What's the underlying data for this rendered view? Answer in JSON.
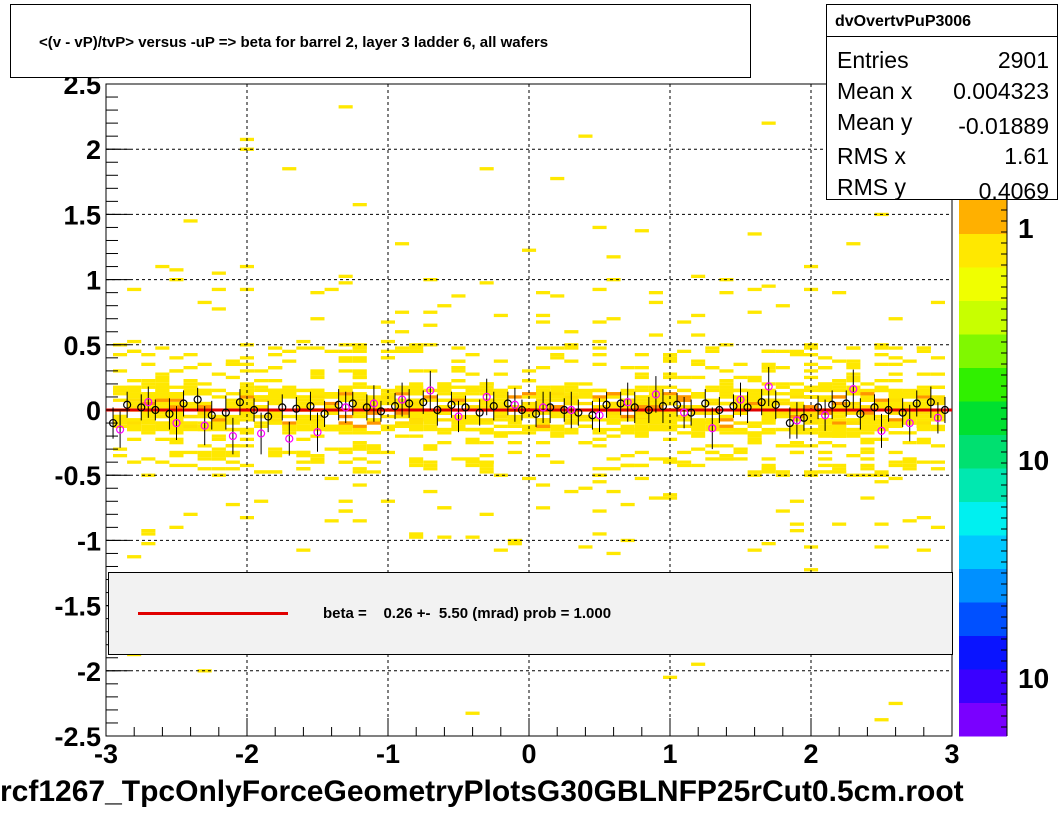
{
  "title": "<(v - vP)/tvP> versus  -uP => beta for barrel 2, layer 3 ladder 6, all wafers",
  "stats": {
    "name": "dvOvertvPuP3006",
    "rows": [
      {
        "key": "Entries",
        "value": "2901"
      },
      {
        "key": "Mean x",
        "value": "0.004323"
      },
      {
        "key": "Mean y",
        "value": "-0.01889"
      },
      {
        "key": "RMS x",
        "value": "1.61"
      },
      {
        "key": "RMS y",
        "value": "0.4069"
      }
    ]
  },
  "legend": {
    "text": "beta =    0.26 +-  5.50 (mrad) prob = 1.000",
    "line_color": "#e00000"
  },
  "footer": "rcf1267_TpcOnlyForceGeometryPlotsG30GBLNFP25rCut0.5cm.root",
  "palette": {
    "labels": [
      "1",
      "10",
      "10"
    ],
    "colors": [
      "#7a00ff",
      "#3a00ff",
      "#0a14ff",
      "#0050ff",
      "#0090ff",
      "#00c8ff",
      "#00f0f0",
      "#00e8b0",
      "#00e070",
      "#00e030",
      "#30f000",
      "#80f800",
      "#c8ff00",
      "#f0ff00",
      "#ffe800",
      "#ffb000"
    ]
  },
  "chart_data": {
    "type": "heatmap",
    "title": "<(v - vP)/tvP> versus  -uP => beta for barrel 2, layer 3 ladder 6, all wafers",
    "xlabel": "",
    "ylabel": "",
    "xlim": [
      -3,
      3
    ],
    "ylim": [
      -2.5,
      2.5
    ],
    "x_ticks": [
      "-3",
      "-2",
      "-1",
      "0",
      "1",
      "2",
      "3"
    ],
    "y_ticks": [
      "-2.5",
      "-2",
      "-1.5",
      "-1",
      "-0.5",
      "0",
      "0.5",
      "1",
      "1.5",
      "2",
      "2.5"
    ],
    "grid": true,
    "legend_position": "bottom",
    "series": [
      {
        "name": "profile",
        "marker": "open-circle",
        "color": "#000000",
        "x": [
          -2.95,
          -2.85,
          -2.75,
          -2.65,
          -2.55,
          -2.45,
          -2.35,
          -2.25,
          -2.15,
          -2.05,
          -1.95,
          -1.85,
          -1.75,
          -1.65,
          -1.55,
          -1.45,
          -1.35,
          -1.25,
          -1.15,
          -1.05,
          -0.95,
          -0.85,
          -0.75,
          -0.65,
          -0.55,
          -0.45,
          -0.35,
          -0.25,
          -0.15,
          -0.05,
          0.05,
          0.15,
          0.25,
          0.35,
          0.45,
          0.55,
          0.65,
          0.75,
          0.85,
          0.95,
          1.05,
          1.15,
          1.25,
          1.35,
          1.45,
          1.55,
          1.65,
          1.75,
          1.85,
          1.95,
          2.05,
          2.15,
          2.25,
          2.35,
          2.45,
          2.55,
          2.65,
          2.75,
          2.85,
          2.95
        ],
        "y": [
          -0.1,
          0.04,
          0.02,
          0.0,
          -0.03,
          0.05,
          0.08,
          -0.04,
          -0.02,
          0.06,
          0.0,
          -0.05,
          0.02,
          0.01,
          0.03,
          -0.03,
          0.04,
          0.05,
          0.02,
          -0.01,
          0.03,
          0.05,
          0.06,
          0.0,
          0.04,
          0.02,
          -0.02,
          0.03,
          0.05,
          0.0,
          -0.03,
          0.02,
          0.0,
          -0.02,
          -0.04,
          0.04,
          0.05,
          0.02,
          0.0,
          0.03,
          0.04,
          -0.02,
          0.05,
          0.0,
          0.03,
          0.02,
          0.06,
          0.04,
          -0.1,
          -0.06,
          0.02,
          0.04,
          0.05,
          -0.03,
          0.02,
          0.0,
          -0.02,
          0.05,
          0.06,
          0.0
        ],
        "yerr": [
          0.12,
          0.1,
          0.1,
          0.08,
          0.12,
          0.1,
          0.09,
          0.11,
          0.13,
          0.1,
          0.09,
          0.12,
          0.1,
          0.09,
          0.11,
          0.1,
          0.12,
          0.09,
          0.1,
          0.08,
          0.1,
          0.11,
          0.09,
          0.12,
          0.1,
          0.09,
          0.1,
          0.11,
          0.09,
          0.08,
          0.1,
          0.12,
          0.09,
          0.1,
          0.11,
          0.1,
          0.09,
          0.12,
          0.1,
          0.13,
          0.09,
          0.1,
          0.11,
          0.1,
          0.09,
          0.12,
          0.1,
          0.11,
          0.12,
          0.1,
          0.09,
          0.11,
          0.1,
          0.12,
          0.1,
          0.09,
          0.11,
          0.1,
          0.12,
          0.1
        ]
      },
      {
        "name": "profile-alt",
        "marker": "open-circle",
        "color": "#ff00ff",
        "x": [
          -2.9,
          -2.7,
          -2.5,
          -2.3,
          -2.1,
          -1.9,
          -1.7,
          -1.5,
          -1.3,
          -1.1,
          -0.9,
          -0.7,
          -0.5,
          -0.3,
          -0.1,
          0.1,
          0.3,
          0.5,
          0.7,
          0.9,
          1.1,
          1.3,
          1.5,
          1.7,
          1.9,
          2.1,
          2.3,
          2.5,
          2.7,
          2.9
        ],
        "y": [
          -0.15,
          0.06,
          -0.1,
          -0.12,
          -0.2,
          -0.18,
          -0.22,
          -0.17,
          0.02,
          0.05,
          0.08,
          0.15,
          -0.05,
          0.1,
          0.04,
          0.02,
          0.0,
          -0.04,
          0.06,
          0.12,
          -0.02,
          -0.14,
          0.08,
          0.18,
          -0.08,
          -0.04,
          0.16,
          -0.16,
          -0.1,
          -0.06
        ],
        "yerr": [
          0.14,
          0.12,
          0.13,
          0.15,
          0.14,
          0.16,
          0.13,
          0.15,
          0.12,
          0.14,
          0.13,
          0.15,
          0.12,
          0.14,
          0.13,
          0.12,
          0.14,
          0.13,
          0.15,
          0.14,
          0.12,
          0.16,
          0.13,
          0.15,
          0.14,
          0.12,
          0.15,
          0.13,
          0.14,
          0.12
        ]
      },
      {
        "name": "fit",
        "type": "line",
        "color": "#e00000",
        "x": [
          -3,
          3
        ],
        "y": [
          0.0,
          0.0
        ]
      }
    ]
  }
}
